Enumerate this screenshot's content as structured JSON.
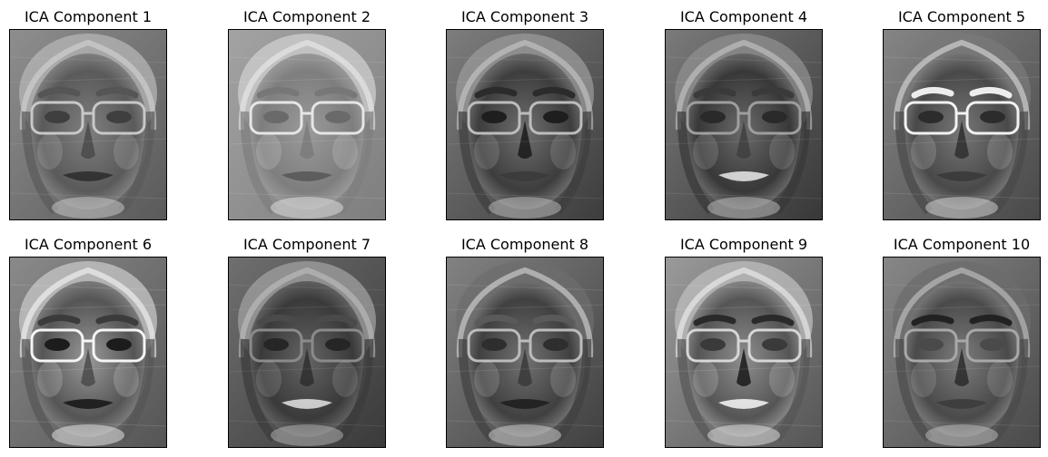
{
  "figure": {
    "panels": [
      {
        "title": "ICA Component 1",
        "face": "face-component-1"
      },
      {
        "title": "ICA Component 2",
        "face": "face-component-2"
      },
      {
        "title": "ICA Component 3",
        "face": "face-component-3"
      },
      {
        "title": "ICA Component 4",
        "face": "face-component-4"
      },
      {
        "title": "ICA Component 5",
        "face": "face-component-5"
      },
      {
        "title": "ICA Component 6",
        "face": "face-component-6"
      },
      {
        "title": "ICA Component 7",
        "face": "face-component-7"
      },
      {
        "title": "ICA Component 8",
        "face": "face-component-8"
      },
      {
        "title": "ICA Component 9",
        "face": "face-component-9"
      },
      {
        "title": "ICA Component 10",
        "face": "face-component-10"
      }
    ],
    "colors": {
      "background": "#ffffff",
      "frame": "#000000",
      "mid_gray": "#8d8d8d"
    }
  }
}
